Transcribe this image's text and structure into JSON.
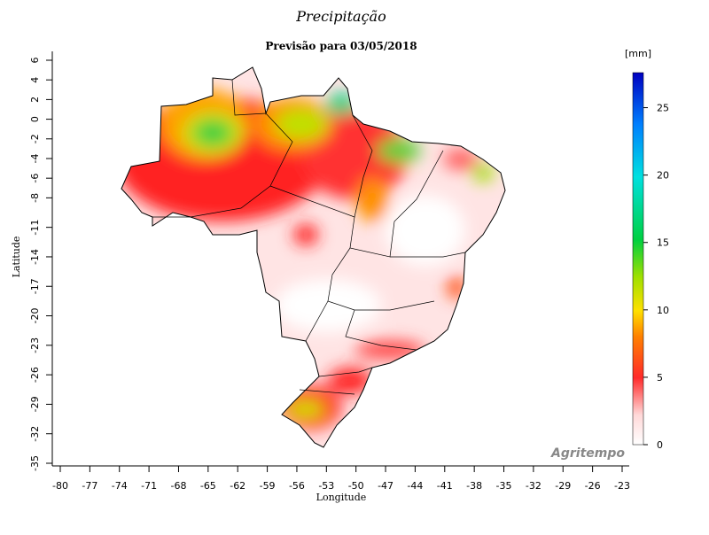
{
  "chart_data": {
    "type": "map",
    "title": "Precipitação",
    "subtitle": "Previsão para 03/05/2018",
    "xlabel": "Longitude",
    "ylabel": "Latitude",
    "xlim": [
      -80,
      -23
    ],
    "ylim": [
      -35,
      6
    ],
    "xticks": [
      -80,
      -77,
      -74,
      -71,
      -68,
      -65,
      -62,
      -59,
      -56,
      -53,
      -50,
      -47,
      -44,
      -41,
      -38,
      -35,
      -32,
      -29,
      -26,
      -23
    ],
    "yticks": [
      6,
      4,
      2,
      0,
      -2,
      -4,
      -6,
      -8,
      -11,
      -14,
      -17,
      -20,
      -23,
      -26,
      -29,
      -32,
      -35
    ],
    "colorbar": {
      "label": "[mm]",
      "lim": [
        0,
        27.6
      ],
      "ticks": [
        0,
        5,
        10,
        15,
        20,
        25
      ]
    },
    "watermark": "Agritempo"
  }
}
